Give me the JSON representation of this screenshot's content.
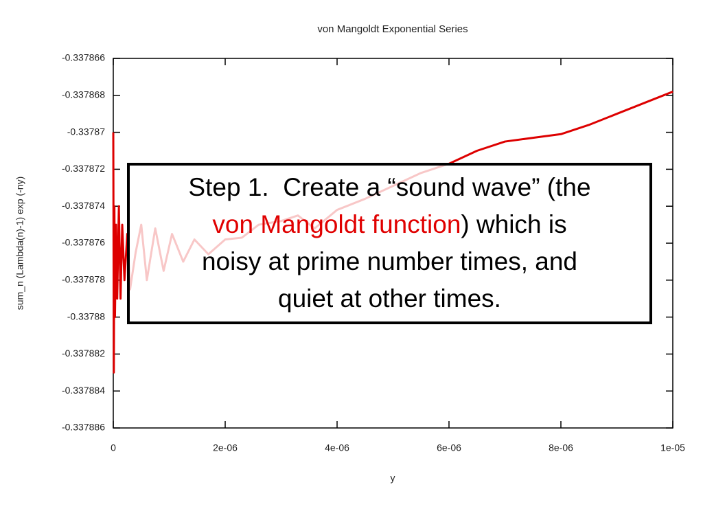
{
  "chart_data": {
    "type": "line",
    "title": "von Mangoldt Exponential Series",
    "x_label": "y",
    "y_label": "sum_n (Lambda(n)-1) exp (-ny)",
    "xlim": [
      0,
      1e-05
    ],
    "ylim": [
      -0.337886,
      -0.337866
    ],
    "xticks": [
      0,
      {
        "value": 2e-06,
        "label": "2e-06"
      },
      {
        "value": 4e-06,
        "label": "4e-06"
      },
      {
        "value": 6e-06,
        "label": "6e-06"
      },
      {
        "value": 8e-06,
        "label": "8e-06"
      },
      {
        "value": 1e-05,
        "label": "1e-05"
      }
    ],
    "yticks": [
      -0.337866,
      -0.337868,
      -0.33787,
      -0.337872,
      -0.337874,
      -0.337876,
      -0.337878,
      -0.33788,
      -0.337882,
      -0.337884,
      -0.337886
    ],
    "series": [
      {
        "color": "#dd0000",
        "x": [
          0,
          1e-08,
          2e-08,
          3e-08,
          5e-08,
          7e-08,
          1e-07,
          1.3e-07,
          1.6e-07,
          2e-07,
          2.5e-07,
          3e-07,
          4e-07,
          5e-07,
          6e-07,
          7.5e-07,
          9e-07,
          1.05e-06,
          1.25e-06,
          1.45e-06,
          1.7e-06,
          2e-06,
          2.3e-06,
          2.6e-06,
          3e-06,
          3.3e-06,
          3.6e-06,
          4e-06,
          4.5e-06,
          5e-06,
          5.5e-06,
          6e-06,
          6.5e-06,
          7e-06,
          7.5e-06,
          8e-06,
          8.5e-06,
          9e-06,
          9.5e-06,
          1e-05
        ],
        "values": [
          -0.33787,
          -0.337883,
          -0.337874,
          -0.33788,
          -0.337875,
          -0.337879,
          -0.337874,
          -0.337879,
          -0.337875,
          -0.337878,
          -0.3378755,
          -0.3378785,
          -0.3378765,
          -0.337875,
          -0.337878,
          -0.3378752,
          -0.3378775,
          -0.3378755,
          -0.337877,
          -0.3378758,
          -0.3378766,
          -0.3378758,
          -0.3378757,
          -0.337875,
          -0.3378748,
          -0.3378745,
          -0.3378752,
          -0.3378742,
          -0.3378736,
          -0.3378729,
          -0.3378722,
          -0.3378717,
          -0.337871,
          -0.3378705,
          -0.3378703,
          -0.3378701,
          -0.3378696,
          -0.337869,
          -0.3378684,
          -0.3378678
        ]
      }
    ]
  },
  "annotation": {
    "lines": [
      "Step 1.  Create a “sound wave” (the",
      "von Mangoldt function",
      ") which is",
      "noisy at prime number times, and",
      "quiet at other times."
    ]
  }
}
